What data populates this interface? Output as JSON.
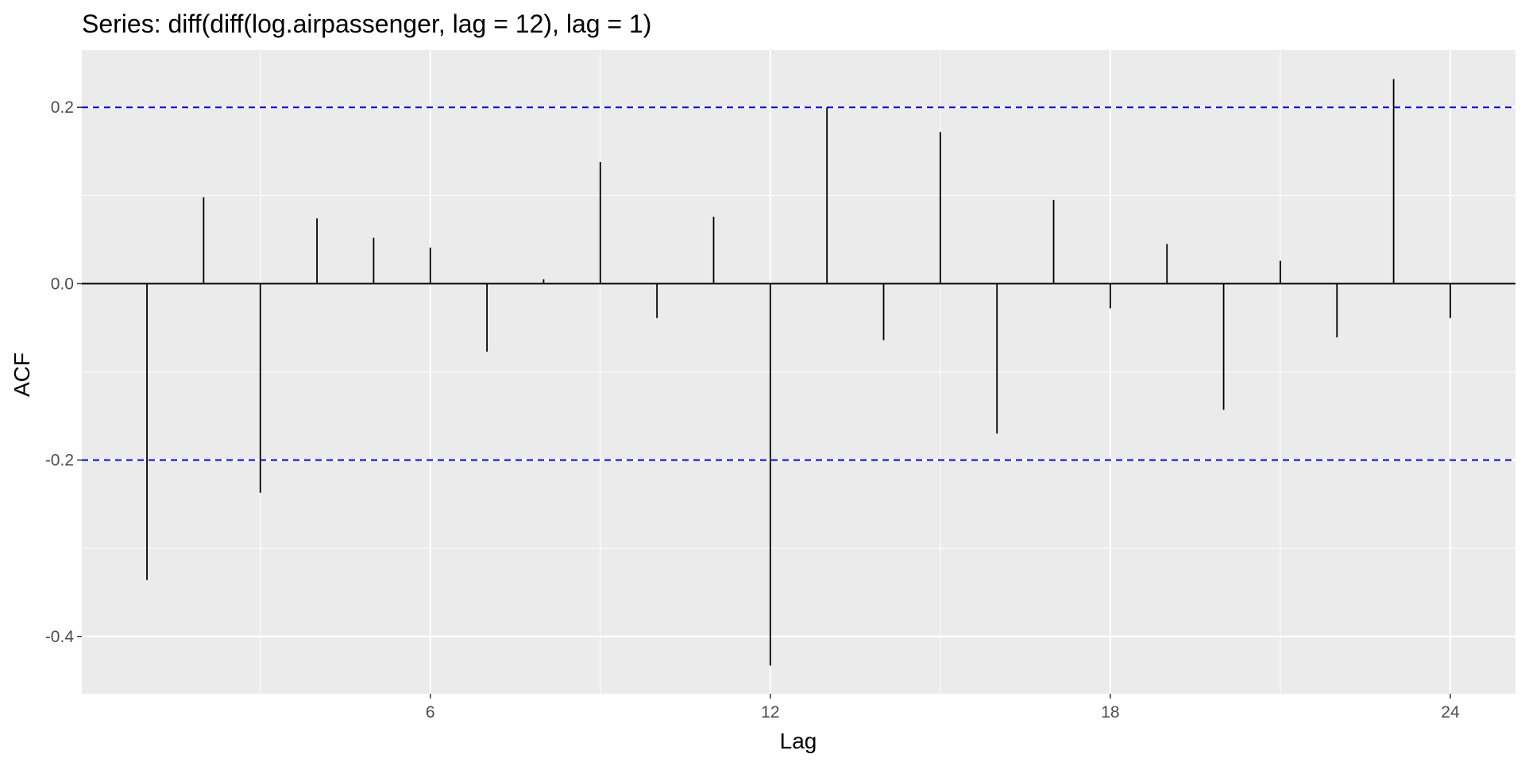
{
  "chart_data": {
    "type": "bar",
    "title": "Series: diff(diff(log.airpassenger, lag = 12), lag = 1)",
    "xlabel": "Lag",
    "ylabel": "ACF",
    "x": [
      1,
      2,
      3,
      4,
      5,
      6,
      7,
      8,
      9,
      10,
      11,
      12,
      13,
      14,
      15,
      16,
      17,
      18,
      19,
      20,
      21,
      22,
      23,
      24
    ],
    "values": [
      -0.336,
      0.098,
      -0.237,
      0.074,
      0.052,
      0.041,
      -0.077,
      0.005,
      0.138,
      -0.039,
      0.076,
      -0.433,
      0.2,
      -0.064,
      0.172,
      -0.17,
      0.095,
      -0.028,
      0.045,
      -0.143,
      0.026,
      -0.061,
      0.232,
      -0.039
    ],
    "confidence_bounds": [
      0.2,
      -0.2
    ],
    "xlim": [
      -0.15,
      25.15
    ],
    "ylim": [
      -0.465,
      0.265
    ],
    "xticks": [
      6,
      12,
      18,
      24
    ],
    "yticks": [
      0.2,
      0.0,
      -0.2,
      -0.4
    ],
    "ytick_labels": [
      "0.2",
      "0.0",
      "-0.2",
      "-0.4"
    ],
    "grid": true,
    "colors": {
      "panel": "#ebebeb",
      "grid": "#ffffff",
      "bars": "#000000",
      "bounds": "#0000ff",
      "ticks": "#4d4d4d"
    }
  }
}
